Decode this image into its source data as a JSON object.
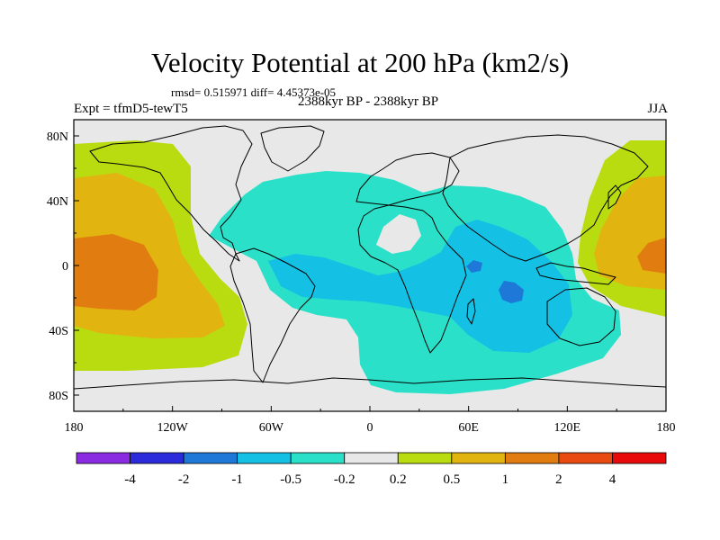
{
  "title": "Velocity Potential at 200 hPa (km2/s)",
  "stats_text": "rmsd= 0.515971 diff= 4.45373e-05",
  "left_label": "Expt = tfmD5-tewT5",
  "center_label": "2388kyr BP - 2388kyr BP",
  "right_label": "JJA",
  "map": {
    "projection": "cylindrical-equidistant",
    "lon_range": [
      -180,
      180
    ],
    "lat_range": [
      -90,
      90
    ],
    "x_ticks": [
      {
        "lon": -180,
        "label": "180"
      },
      {
        "lon": -120,
        "label": "120W"
      },
      {
        "lon": -60,
        "label": "60W"
      },
      {
        "lon": 0,
        "label": "0"
      },
      {
        "lon": 60,
        "label": "60E"
      },
      {
        "lon": 120,
        "label": "120E"
      },
      {
        "lon": 180,
        "label": "180"
      }
    ],
    "y_ticks": [
      {
        "lat": 80,
        "label": "80N"
      },
      {
        "lat": 40,
        "label": "40N"
      },
      {
        "lat": 0,
        "label": "0"
      },
      {
        "lat": -40,
        "label": "40S"
      },
      {
        "lat": -80,
        "label": "80S"
      }
    ]
  },
  "colorbar": {
    "colors": [
      "#8a2be2",
      "#2b2bdb",
      "#1e78d8",
      "#14c0e4",
      "#2be0c8",
      "#e8e8e8",
      "#b8dc10",
      "#e2b410",
      "#e07c10",
      "#e84a10",
      "#e80a0a"
    ],
    "labels": [
      "-4",
      "-2",
      "-1",
      "-0.5",
      "-0.2",
      "0.2",
      "0.5",
      "1",
      "2",
      "4"
    ]
  },
  "colors": {
    "land_outline": "#000000",
    "neutral": "#e8e8e8",
    "neg_light": "#2be0c8",
    "neg_mid": "#14c0e4",
    "neg_strong": "#1e78d8",
    "pos_light": "#b8dc10",
    "pos_mid": "#e2b410",
    "pos_strong": "#e07c10"
  }
}
